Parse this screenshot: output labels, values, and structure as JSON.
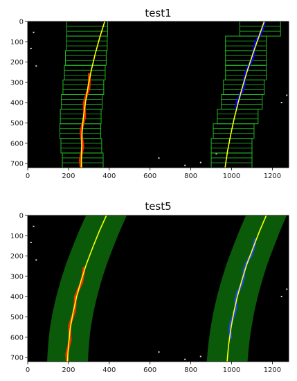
{
  "chart_data": [
    {
      "type": "image-plot",
      "title": "test1",
      "xlim": [
        0,
        1280
      ],
      "ylim": [
        720,
        0
      ],
      "xticks": [
        0,
        200,
        400,
        600,
        800,
        1000,
        1200
      ],
      "yticks": [
        0,
        100,
        200,
        300,
        400,
        500,
        600,
        700
      ],
      "visualization": "sliding-windows",
      "colors": {
        "background": "#000000",
        "window": "#22bb22",
        "fit": "#ffff00",
        "left_pixels": "#ff2200",
        "right_pixels": "#0000ff"
      },
      "lanes": [
        {
          "side": "left",
          "fit": [
            [
              263,
              720
            ],
            [
              264,
              640
            ],
            [
              266,
              560
            ],
            [
              272,
              480
            ],
            [
              283,
              400
            ],
            [
              296,
              320
            ],
            [
              312,
              240
            ],
            [
              331,
              160
            ],
            [
              353,
              80
            ],
            [
              378,
              0
            ]
          ],
          "window_centers": [
            270,
            263,
            258,
            260,
            265,
            273,
            280,
            285,
            290,
            292
          ]
        },
        {
          "side": "right",
          "fit": [
            [
              968,
              720
            ],
            [
              980,
              640
            ],
            [
              995,
              560
            ],
            [
              1012,
              480
            ],
            [
              1032,
              400
            ],
            [
              1054,
              320
            ],
            [
              1078,
              240
            ],
            [
              1104,
              160
            ],
            [
              1132,
              80
            ],
            [
              1160,
              0
            ]
          ],
          "window_centers": [
            1000,
            1000,
            1010,
            1030,
            1050,
            1060,
            1070,
            1070,
            1070,
            1140
          ]
        }
      ]
    },
    {
      "type": "image-plot",
      "title": "test5",
      "xlim": [
        0,
        1280
      ],
      "ylim": [
        720,
        0
      ],
      "xticks": [
        0,
        200,
        400,
        600,
        800,
        1000,
        1200
      ],
      "yticks": [
        0,
        100,
        200,
        300,
        400,
        500,
        600,
        700
      ],
      "visualization": "search-margin",
      "colors": {
        "background": "#000000",
        "margin": "#0a5a0a",
        "fit": "#ffff00",
        "left_pixels": "#ff3300",
        "right_pixels": "#1a4aff"
      },
      "lanes": [
        {
          "side": "left",
          "fit": [
            [
              195,
              720
            ],
            [
              200,
              640
            ],
            [
              208,
              560
            ],
            [
              222,
              480
            ],
            [
              240,
              400
            ],
            [
              262,
              320
            ],
            [
              288,
              240
            ],
            [
              318,
              160
            ],
            [
              350,
              80
            ],
            [
              386,
              0
            ]
          ],
          "margin_halfwidth": 100
        },
        {
          "side": "right",
          "fit": [
            [
              978,
              720
            ],
            [
              985,
              640
            ],
            [
              996,
              560
            ],
            [
              1010,
              480
            ],
            [
              1028,
              400
            ],
            [
              1050,
              320
            ],
            [
              1075,
              240
            ],
            [
              1105,
              160
            ],
            [
              1136,
              80
            ],
            [
              1170,
              0
            ]
          ],
          "margin_halfwidth": 100
        }
      ]
    }
  ]
}
